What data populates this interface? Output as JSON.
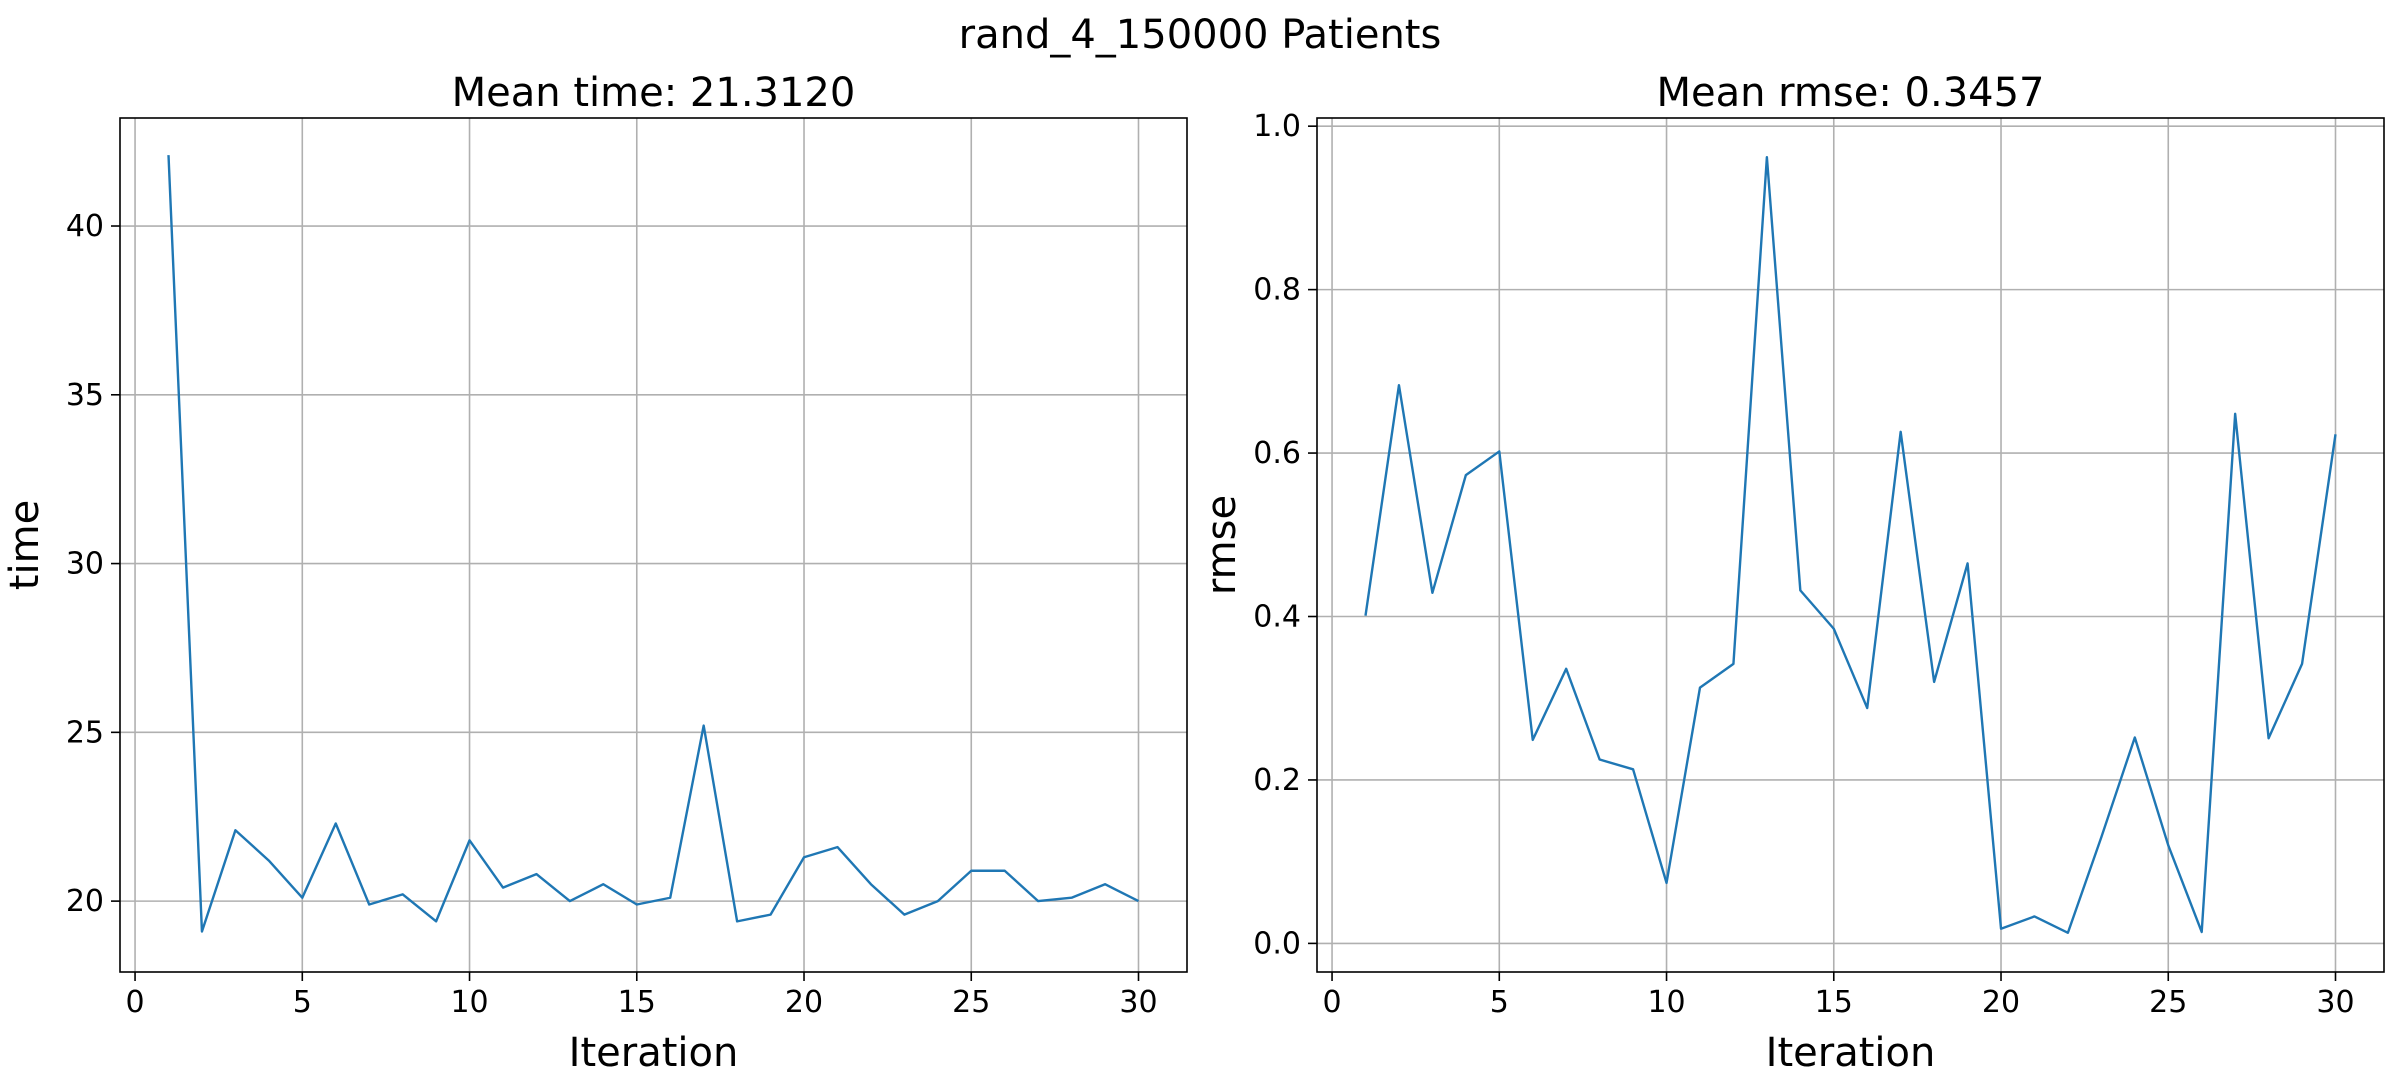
{
  "suptitle": "rand_4_150000 Patients",
  "colors": {
    "series": "#1f77b4",
    "grid": "#b0b0b0",
    "axis": "#000000"
  },
  "chart_data": [
    {
      "type": "line",
      "title": "Mean time: 21.3120",
      "xlabel": "Iteration",
      "ylabel": "time",
      "xlim": [
        -0.45,
        31.45
      ],
      "ylim": [
        17.9,
        43.2
      ],
      "xticks": [
        0,
        5,
        10,
        15,
        20,
        25,
        30
      ],
      "yticks": [
        20,
        25,
        30,
        35,
        40
      ],
      "grid": true,
      "x": [
        1,
        2,
        3,
        4,
        5,
        6,
        7,
        8,
        9,
        10,
        11,
        12,
        13,
        14,
        15,
        16,
        17,
        18,
        19,
        20,
        21,
        22,
        23,
        24,
        25,
        26,
        27,
        28,
        29,
        30
      ],
      "series": [
        {
          "values": [
            42.1,
            19.1,
            22.1,
            21.2,
            20.1,
            22.3,
            19.9,
            20.2,
            19.4,
            21.8,
            20.4,
            20.8,
            20.0,
            20.5,
            19.9,
            20.1,
            25.2,
            19.4,
            19.6,
            21.3,
            21.6,
            20.5,
            19.6,
            20.0,
            20.9,
            20.9,
            20.0,
            20.1,
            20.5,
            20.0
          ]
        }
      ]
    },
    {
      "type": "line",
      "title": "Mean rmse: 0.3457",
      "xlabel": "Iteration",
      "ylabel": "rmse",
      "xlim": [
        -0.45,
        31.45
      ],
      "ylim": [
        -0.035,
        1.01
      ],
      "xticks": [
        0,
        5,
        10,
        15,
        20,
        25,
        30
      ],
      "yticks": [
        0.0,
        0.2,
        0.4,
        0.6,
        0.8,
        1.0
      ],
      "grid": true,
      "x": [
        1,
        2,
        3,
        4,
        5,
        6,
        7,
        8,
        9,
        10,
        11,
        12,
        13,
        14,
        15,
        16,
        17,
        18,
        19,
        20,
        21,
        22,
        23,
        24,
        25,
        26,
        27,
        28,
        29,
        30
      ],
      "series": [
        {
          "values": [
            0.401,
            0.683,
            0.429,
            0.573,
            0.602,
            0.249,
            0.336,
            0.225,
            0.213,
            0.074,
            0.313,
            0.342,
            0.962,
            0.432,
            0.385,
            0.288,
            0.626,
            0.32,
            0.465,
            0.018,
            0.033,
            0.013,
            0.13,
            0.252,
            0.12,
            0.014,
            0.648,
            0.251,
            0.342,
            0.623
          ]
        }
      ]
    }
  ]
}
